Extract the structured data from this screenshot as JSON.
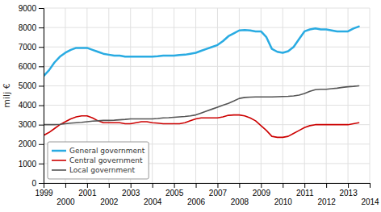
{
  "chart_data": {
    "type": "line",
    "ylabel": "milj €",
    "x": [
      1999,
      1999.25,
      1999.5,
      1999.75,
      2000,
      2000.25,
      2000.5,
      2000.75,
      2001,
      2001.25,
      2001.5,
      2001.75,
      2002,
      2002.25,
      2002.5,
      2002.75,
      2003,
      2003.25,
      2003.5,
      2003.75,
      2004,
      2004.25,
      2004.5,
      2004.75,
      2005,
      2005.25,
      2005.5,
      2005.75,
      2006,
      2006.25,
      2006.5,
      2006.75,
      2007,
      2007.25,
      2007.5,
      2007.75,
      2008,
      2008.25,
      2008.5,
      2008.75,
      2009,
      2009.25,
      2009.5,
      2009.75,
      2010,
      2010.25,
      2010.5,
      2010.75,
      2011,
      2011.25,
      2011.5,
      2011.75,
      2012,
      2012.25,
      2012.5,
      2012.75,
      2013,
      2013.25,
      2013.5
    ],
    "series": [
      {
        "name": "General government",
        "color": "#29ABE2",
        "values": [
          5500,
          5800,
          6200,
          6500,
          6700,
          6850,
          6950,
          6950,
          6950,
          6850,
          6750,
          6650,
          6600,
          6550,
          6550,
          6500,
          6500,
          6500,
          6500,
          6500,
          6500,
          6520,
          6550,
          6550,
          6550,
          6580,
          6600,
          6650,
          6700,
          6800,
          6900,
          7000,
          7100,
          7300,
          7550,
          7700,
          7850,
          7870,
          7850,
          7800,
          7800,
          7500,
          6900,
          6750,
          6700,
          6780,
          7000,
          7400,
          7800,
          7900,
          7950,
          7900,
          7900,
          7850,
          7800,
          7800,
          7800,
          7950,
          8050
        ]
      },
      {
        "name": "Central government",
        "color": "#CC0000",
        "values": [
          2450,
          2600,
          2800,
          3000,
          3150,
          3300,
          3400,
          3450,
          3450,
          3350,
          3200,
          3100,
          3100,
          3100,
          3100,
          3050,
          3050,
          3100,
          3150,
          3150,
          3100,
          3080,
          3050,
          3050,
          3050,
          3050,
          3100,
          3200,
          3300,
          3350,
          3350,
          3350,
          3350,
          3400,
          3480,
          3500,
          3500,
          3450,
          3350,
          3200,
          2950,
          2700,
          2400,
          2350,
          2350,
          2400,
          2550,
          2700,
          2850,
          2950,
          3000,
          3000,
          3000,
          3000,
          3000,
          3000,
          3000,
          3050,
          3100
        ]
      },
      {
        "name": "Local government",
        "color": "#555555",
        "values": [
          3000,
          3000,
          3000,
          3020,
          3050,
          3080,
          3100,
          3120,
          3150,
          3180,
          3200,
          3220,
          3220,
          3230,
          3250,
          3270,
          3300,
          3300,
          3300,
          3300,
          3300,
          3320,
          3350,
          3360,
          3380,
          3400,
          3420,
          3450,
          3500,
          3600,
          3700,
          3800,
          3900,
          4000,
          4100,
          4220,
          4350,
          4400,
          4420,
          4430,
          4430,
          4430,
          4430,
          4440,
          4450,
          4460,
          4480,
          4520,
          4600,
          4720,
          4800,
          4820,
          4820,
          4850,
          4880,
          4920,
          4950,
          4970,
          5000
        ]
      }
    ],
    "xlim": [
      1999,
      2014
    ],
    "ylim": [
      0,
      9000
    ],
    "xticks": [
      1999,
      2000,
      2001,
      2002,
      2003,
      2004,
      2005,
      2006,
      2007,
      2008,
      2009,
      2010,
      2011,
      2012,
      2013,
      2014
    ],
    "yticks": [
      0,
      1000,
      2000,
      3000,
      4000,
      5000,
      6000,
      7000,
      8000,
      9000
    ],
    "grid": true,
    "legend": "lower left"
  }
}
